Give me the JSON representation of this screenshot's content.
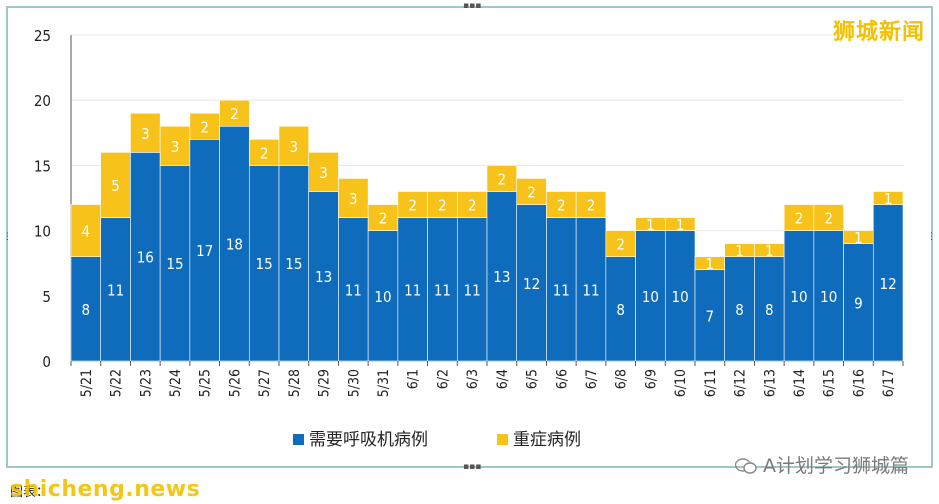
{
  "chart_data": {
    "type": "bar",
    "stacked": true,
    "categories": [
      "5/21",
      "5/22",
      "5/23",
      "5/24",
      "5/25",
      "5/26",
      "5/27",
      "5/28",
      "5/29",
      "5/30",
      "5/31",
      "6/1",
      "6/2",
      "6/3",
      "6/4",
      "6/5",
      "6/6",
      "6/7",
      "6/8",
      "6/9",
      "6/10",
      "6/11",
      "6/12",
      "6/13",
      "6/14",
      "6/15",
      "6/16",
      "6/17"
    ],
    "series": [
      {
        "name": "需要呼吸机病例",
        "color": "#0f6cbd",
        "values": [
          8,
          11,
          16,
          15,
          17,
          18,
          15,
          15,
          13,
          11,
          10,
          11,
          11,
          11,
          13,
          12,
          11,
          11,
          8,
          10,
          10,
          7,
          8,
          8,
          10,
          10,
          9,
          12
        ]
      },
      {
        "name": "重症病例",
        "color": "#f7c21a",
        "values": [
          4,
          5,
          3,
          3,
          2,
          2,
          2,
          3,
          3,
          3,
          2,
          2,
          2,
          2,
          2,
          2,
          2,
          2,
          2,
          1,
          1,
          1,
          1,
          1,
          2,
          2,
          1,
          1
        ]
      }
    ],
    "ylim": [
      0,
      25
    ],
    "yticks": [
      0,
      5,
      10,
      15,
      20,
      25
    ],
    "grid": true,
    "legend_position": "bottom",
    "title": "",
    "xlabel": "",
    "ylabel": ""
  },
  "watermark_top": "狮城新闻",
  "credit": "图表：",
  "site_mark": "shicheng.news",
  "wechat_mark": "A计划学习狮城篇"
}
